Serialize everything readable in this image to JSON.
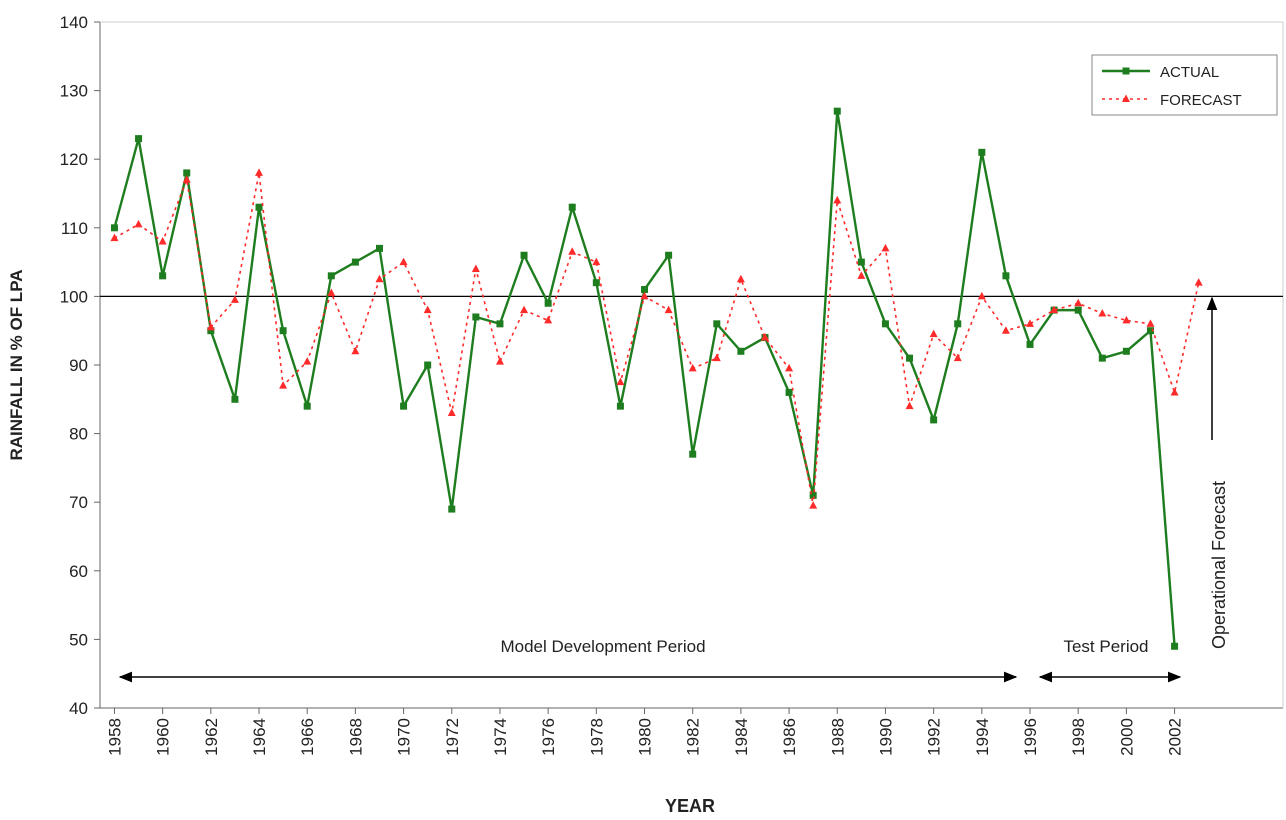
{
  "chart_data": {
    "type": "line",
    "y_label": "RAINFALL IN % OF LPA",
    "x_label": "YEAR",
    "x": [
      1958,
      1959,
      1960,
      1961,
      1962,
      1963,
      1964,
      1965,
      1966,
      1967,
      1968,
      1969,
      1970,
      1971,
      1972,
      1973,
      1974,
      1975,
      1976,
      1977,
      1978,
      1979,
      1980,
      1981,
      1982,
      1983,
      1984,
      1985,
      1986,
      1987,
      1988,
      1989,
      1990,
      1991,
      1992,
      1993,
      1994,
      1995,
      1996,
      1997,
      1998,
      1999,
      2000,
      2001,
      2002,
      2003
    ],
    "series": [
      {
        "name": "ACTUAL",
        "color": "#1e7d1e",
        "values": [
          110,
          123,
          103,
          118,
          95,
          85,
          113,
          95,
          84,
          103,
          105,
          107,
          84,
          90,
          69,
          97,
          96,
          106,
          99,
          113,
          102,
          84,
          101,
          106,
          77,
          96,
          92,
          94,
          86,
          71,
          127,
          105,
          96,
          91,
          82,
          96,
          121,
          103,
          93,
          98,
          98,
          91,
          92,
          95,
          49,
          null
        ]
      },
      {
        "name": "FORECAST",
        "color": "#ff2a2a",
        "values": [
          108.5,
          110.5,
          108,
          117,
          95.5,
          99.5,
          118,
          87,
          90.5,
          100.5,
          92,
          102.5,
          105,
          98,
          83,
          104,
          90.5,
          98,
          96.5,
          106.5,
          105,
          87.5,
          100,
          98,
          89.5,
          91,
          102.5,
          94,
          89.5,
          69.5,
          114,
          103,
          107,
          84,
          94.5,
          91,
          100,
          95,
          96,
          98,
          99,
          97.5,
          96.5,
          96,
          86,
          102
        ]
      }
    ],
    "xlim": [
      1957.4,
      2006.5
    ],
    "ylim": [
      40,
      140
    ],
    "xticks": [
      1958,
      1960,
      1962,
      1964,
      1966,
      1968,
      1970,
      1972,
      1974,
      1976,
      1978,
      1980,
      1982,
      1984,
      1986,
      1988,
      1990,
      1992,
      1994,
      1996,
      1998,
      2000,
      2002
    ],
    "yticks": [
      40,
      50,
      60,
      70,
      80,
      90,
      100,
      110,
      120,
      130,
      140
    ],
    "reference_line": 100,
    "annotations": [
      "Model Development Period",
      "Test Period",
      "Operational Forecast"
    ],
    "legend": "top-right"
  }
}
